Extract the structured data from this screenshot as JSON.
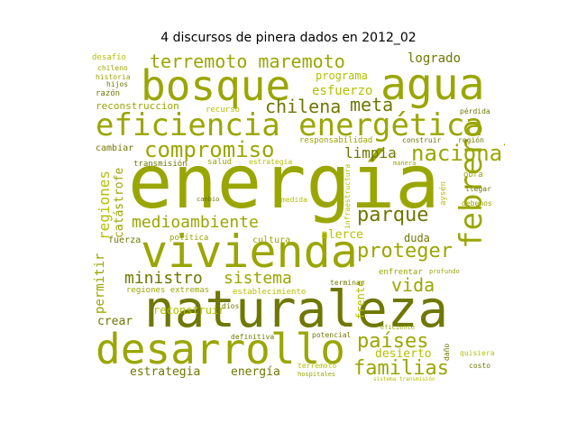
{
  "title": "4 discursos de pinera dados en 2012_02",
  "colors": {
    "olive_dark": "#6e7800",
    "olive": "#9aa600",
    "olive_light": "#b4c000"
  },
  "words": [
    {
      "text": "energía",
      "color": "#9aa600"
    },
    {
      "text": "naturaleza",
      "color": "#6e7800"
    },
    {
      "text": "vivienda",
      "color": "#9aa600"
    },
    {
      "text": "desarrollo",
      "color": "#9aa600"
    },
    {
      "text": "bosque",
      "color": "#9aa600"
    },
    {
      "text": "agua",
      "color": "#9aa600"
    },
    {
      "text": "eficiencia energética",
      "color": "#9aa600"
    },
    {
      "text": "febrero",
      "color": "#9aa600"
    },
    {
      "text": "terremoto maremoto",
      "color": "#9aa600"
    },
    {
      "text": "compromiso",
      "color": "#9aa600"
    },
    {
      "text": "nacional",
      "color": "#9aa600"
    },
    {
      "text": "chilena",
      "color": "#6e7800"
    },
    {
      "text": "meta",
      "color": "#6e7800"
    },
    {
      "text": "proteger",
      "color": "#9aa600"
    },
    {
      "text": "medioambiente",
      "color": "#9aa600"
    },
    {
      "text": "parque",
      "color": "#6e7800"
    },
    {
      "text": "ministro",
      "color": "#6e7800"
    },
    {
      "text": "sistema",
      "color": "#9aa600"
    },
    {
      "text": "vida",
      "color": "#9aa600"
    },
    {
      "text": "países",
      "color": "#9aa600"
    },
    {
      "text": "familias",
      "color": "#9aa600"
    },
    {
      "text": "logrado",
      "color": "#6e7800"
    },
    {
      "text": "programa",
      "color": "#b4c000"
    },
    {
      "text": "esfuerzo",
      "color": "#b4c000"
    },
    {
      "text": "reconstruccion",
      "color": "#9aa600"
    },
    {
      "text": "limpia",
      "color": "#6e7800"
    },
    {
      "text": "regiones",
      "color": "#b4c000"
    },
    {
      "text": "catástrofe",
      "color": "#9aa600"
    },
    {
      "text": "permitir",
      "color": "#9aa600"
    },
    {
      "text": "crear",
      "color": "#6e7800"
    },
    {
      "text": "reconstruir",
      "color": "#b4c000"
    },
    {
      "text": "estrategia",
      "color": "#6e7800"
    },
    {
      "text": "energía",
      "color": "#6e7800"
    },
    {
      "text": "desierto",
      "color": "#b4c000"
    },
    {
      "text": "duda",
      "color": "#6e7800"
    },
    {
      "text": "alerce",
      "color": "#b4c000"
    },
    {
      "text": "frente",
      "color": "#b4c000"
    },
    {
      "text": "fuerza",
      "color": "#6e7800"
    },
    {
      "text": "cultura",
      "color": "#9aa600"
    },
    {
      "text": "política",
      "color": "#9aa600"
    },
    {
      "text": "regiones extremas",
      "color": "#9aa600"
    },
    {
      "text": "establecimiento",
      "color": "#b4c000"
    },
    {
      "text": "terminar",
      "color": "#6e7800"
    },
    {
      "text": "enfrentar",
      "color": "#9aa600"
    },
    {
      "text": "cambiar",
      "color": "#6e7800"
    },
    {
      "text": "transmisión",
      "color": "#6e7800"
    },
    {
      "text": "salud",
      "color": "#9aa600"
    },
    {
      "text": "estrategia",
      "color": "#b4c000"
    },
    {
      "text": "responsabilidad",
      "color": "#9aa600"
    },
    {
      "text": "región",
      "color": "#6e7800"
    },
    {
      "text": "construir",
      "color": "#6e7800"
    },
    {
      "text": "recurso",
      "color": "#b4c000"
    },
    {
      "text": "desafío",
      "color": "#b4c000"
    },
    {
      "text": "chileno",
      "color": "#9aa600"
    },
    {
      "text": "historia",
      "color": "#9aa600"
    },
    {
      "text": "hijos",
      "color": "#6e7800"
    },
    {
      "text": "razón",
      "color": "#6e7800"
    },
    {
      "text": "pérdida",
      "color": "#6e7800"
    },
    {
      "text": "obra",
      "color": "#9aa600"
    },
    {
      "text": "llegar",
      "color": "#6e7800"
    },
    {
      "text": "debemos",
      "color": "#9aa600"
    },
    {
      "text": "aysén",
      "color": "#b4c000"
    },
    {
      "text": "costo",
      "color": "#6e7800"
    },
    {
      "text": "quisiera",
      "color": "#b4c000"
    },
    {
      "text": "daño",
      "color": "#6e7800"
    },
    {
      "text": "potencial",
      "color": "#6e7800"
    },
    {
      "text": "terremoto",
      "color": "#b4c000"
    },
    {
      "text": "hospitales",
      "color": "#9aa600"
    },
    {
      "text": "definitiva",
      "color": "#6e7800"
    },
    {
      "text": "medida",
      "color": "#b4c000"
    },
    {
      "text": "dios",
      "color": "#6e7800"
    },
    {
      "text": "profundo",
      "color": "#9aa600"
    },
    {
      "text": "eficiente",
      "color": "#9aa600"
    },
    {
      "text": "infraestructura",
      "color": "#b4c000"
    },
    {
      "text": "manera",
      "color": "#9aa600"
    },
    {
      "text": "cambio",
      "color": "#6e7800"
    },
    {
      "text": "sistema transmisión",
      "color": "#b4c000"
    }
  ]
}
